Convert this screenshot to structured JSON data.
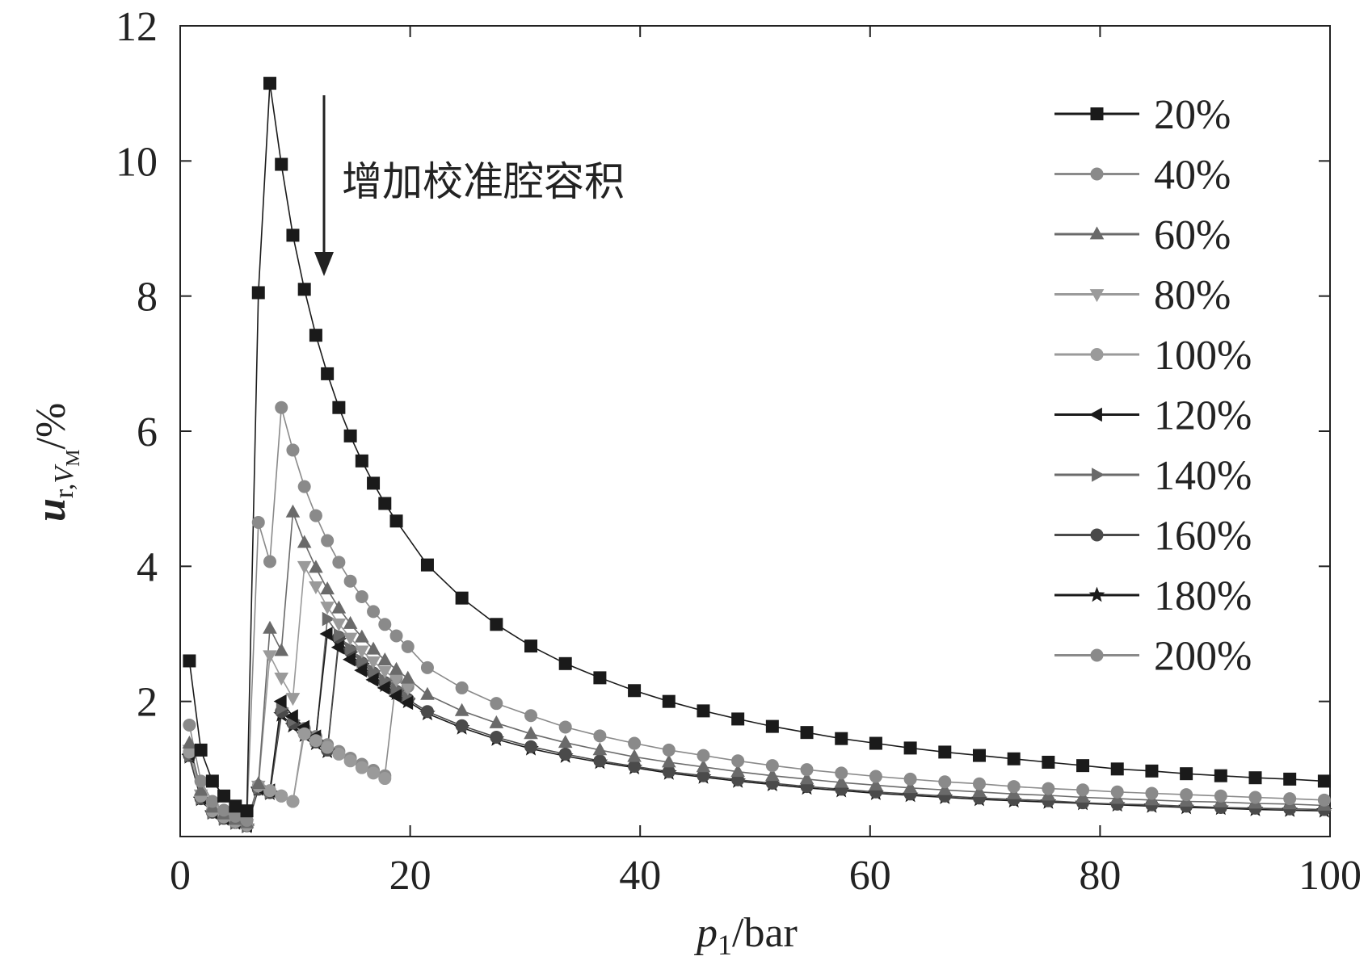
{
  "chart_data": {
    "type": "line",
    "title": "",
    "xlabel": "p1/bar",
    "xlabel_main": "p",
    "xlabel_sub": "1",
    "xlabel_unit": "/bar",
    "ylabel_main": "u",
    "ylabel_sub": "r,",
    "ylabel_sub2": "V",
    "ylabel_sub3": "M",
    "ylabel_unit": "/%",
    "xlim": [
      0,
      100
    ],
    "ylim": [
      0,
      12
    ],
    "xticks": [
      0,
      20,
      40,
      60,
      80,
      100
    ],
    "yticks": [
      2,
      4,
      6,
      8,
      10,
      12
    ],
    "annotation": "增加校准腔容积",
    "grid": false,
    "legend_position": "top-right",
    "series": [
      {
        "name": "20%",
        "marker": "square",
        "color": "#1a1a1a",
        "x": [
          0.8,
          1.8,
          2.8,
          3.8,
          4.8,
          5.8,
          6.8,
          7.8,
          8.8,
          9.8,
          10.8,
          11.8,
          12.8,
          13.8,
          14.8,
          15.8,
          16.8,
          17.8,
          18.8,
          21.5,
          24.5,
          27.5,
          30.5,
          33.5,
          36.5,
          39.5,
          42.5,
          45.5,
          48.5,
          51.5,
          54.5,
          57.5,
          60.5,
          63.5,
          66.5,
          69.5,
          72.5,
          75.5,
          78.5,
          81.5,
          84.5,
          87.5,
          90.5,
          93.5,
          96.5,
          99.5
        ],
        "y": [
          2.6,
          1.28,
          0.82,
          0.6,
          0.45,
          0.38,
          8.05,
          11.15,
          9.95,
          8.9,
          8.1,
          7.42,
          6.85,
          6.35,
          5.93,
          5.56,
          5.23,
          4.93,
          4.67,
          4.02,
          3.53,
          3.14,
          2.82,
          2.56,
          2.35,
          2.16,
          2.0,
          1.86,
          1.74,
          1.63,
          1.54,
          1.45,
          1.38,
          1.31,
          1.25,
          1.2,
          1.15,
          1.1,
          1.05,
          1.0,
          0.97,
          0.93,
          0.9,
          0.87,
          0.85,
          0.82
        ]
      },
      {
        "name": "40%",
        "marker": "circle",
        "color": "#8a8a8a",
        "x": [
          0.8,
          1.8,
          2.8,
          3.8,
          4.8,
          5.8,
          6.8,
          7.8,
          8.8,
          9.8,
          10.8,
          11.8,
          12.8,
          13.8,
          14.8,
          15.8,
          16.8,
          17.8,
          18.8,
          19.8,
          21.5,
          24.5,
          27.5,
          30.5,
          33.5,
          36.5,
          39.5,
          42.5,
          45.5,
          48.5,
          51.5,
          54.5,
          57.5,
          60.5,
          63.5,
          66.5,
          69.5,
          72.5,
          75.5,
          78.5,
          81.5,
          84.5,
          87.5,
          90.5,
          93.5,
          96.5,
          99.5
        ],
        "y": [
          1.65,
          0.82,
          0.52,
          0.39,
          0.3,
          0.24,
          4.65,
          4.07,
          6.35,
          5.72,
          5.18,
          4.75,
          4.38,
          4.06,
          3.78,
          3.55,
          3.33,
          3.14,
          2.97,
          2.81,
          2.5,
          2.2,
          1.97,
          1.79,
          1.62,
          1.49,
          1.38,
          1.28,
          1.2,
          1.12,
          1.05,
          0.99,
          0.94,
          0.89,
          0.85,
          0.81,
          0.78,
          0.74,
          0.71,
          0.69,
          0.66,
          0.64,
          0.62,
          0.6,
          0.58,
          0.56,
          0.54
        ]
      },
      {
        "name": "60%",
        "marker": "triangle-up",
        "color": "#6a6a6a",
        "x": [
          0.8,
          1.8,
          2.8,
          3.8,
          4.8,
          5.8,
          6.8,
          7.8,
          8.8,
          9.8,
          10.8,
          11.8,
          12.8,
          13.8,
          14.8,
          15.8,
          16.8,
          17.8,
          18.8,
          19.8,
          21.5,
          24.5,
          27.5,
          30.5,
          33.5,
          36.5,
          39.5,
          42.5,
          45.5,
          48.5,
          51.5,
          54.5,
          57.5,
          60.5,
          63.5,
          66.5,
          69.5,
          72.5,
          75.5,
          78.5,
          81.5,
          84.5,
          87.5,
          90.5,
          93.5,
          96.5,
          99.5
        ],
        "y": [
          1.38,
          0.68,
          0.43,
          0.33,
          0.25,
          0.2,
          0.78,
          3.08,
          2.75,
          4.8,
          4.35,
          3.98,
          3.66,
          3.38,
          3.15,
          2.95,
          2.77,
          2.61,
          2.47,
          2.34,
          2.1,
          1.86,
          1.68,
          1.52,
          1.39,
          1.28,
          1.18,
          1.1,
          1.03,
          0.96,
          0.9,
          0.85,
          0.8,
          0.76,
          0.72,
          0.69,
          0.66,
          0.63,
          0.61,
          0.58,
          0.56,
          0.54,
          0.52,
          0.51,
          0.49,
          0.48,
          0.46
        ]
      },
      {
        "name": "80%",
        "marker": "triangle-down",
        "color": "#9a9a9a",
        "x": [
          0.8,
          1.8,
          2.8,
          3.8,
          4.8,
          5.8,
          6.8,
          7.8,
          8.8,
          9.8,
          10.8,
          11.8,
          12.8,
          13.8,
          14.8,
          15.8,
          16.8,
          17.8,
          18.8,
          19.8
        ],
        "y": [
          1.28,
          0.62,
          0.4,
          0.3,
          0.23,
          0.18,
          0.75,
          2.68,
          2.35,
          2.05,
          4.0,
          3.7,
          3.4,
          3.15,
          2.94,
          2.75,
          2.59,
          2.45,
          2.32,
          2.2
        ]
      },
      {
        "name": "100%",
        "marker": "circle",
        "color": "#9a9a9a",
        "x": [
          0.8,
          1.8,
          2.8,
          3.8,
          4.8,
          5.8,
          6.8,
          7.8,
          8.8,
          9.8,
          10.8,
          11.8,
          12.8,
          13.8,
          14.8,
          15.8,
          16.8,
          17.8
        ],
        "y": [
          1.25,
          0.6,
          0.38,
          0.29,
          0.22,
          0.17,
          0.75,
          0.68,
          0.6,
          0.52,
          1.52,
          1.42,
          1.32,
          1.22,
          1.12,
          1.02,
          0.94,
          0.86
        ]
      },
      {
        "name": "120%",
        "marker": "triangle-left",
        "color": "#1a1a1a",
        "x": [
          0.8,
          1.8,
          2.8,
          3.8,
          4.8,
          5.8,
          6.8,
          7.8,
          8.8,
          9.8,
          10.8,
          11.8,
          12.8,
          13.8,
          14.8,
          15.8,
          16.8,
          17.8,
          18.8,
          19.8
        ],
        "y": [
          1.22,
          0.58,
          0.37,
          0.28,
          0.22,
          0.17,
          0.72,
          0.68,
          2.0,
          1.78,
          1.62,
          1.48,
          3.0,
          2.8,
          2.62,
          2.46,
          2.32,
          2.2,
          2.08,
          1.98
        ]
      },
      {
        "name": "140%",
        "marker": "triangle-right",
        "color": "#6a6a6a",
        "x": [
          0.8,
          1.8,
          2.8,
          3.8,
          4.8,
          5.8,
          6.8,
          7.8,
          8.8,
          9.8,
          10.8,
          11.8,
          12.8,
          13.8,
          14.8,
          15.8,
          16.8,
          17.8,
          18.8,
          19.8
        ],
        "y": [
          1.2,
          0.57,
          0.36,
          0.27,
          0.21,
          0.16,
          0.72,
          0.66,
          1.9,
          1.72,
          1.56,
          1.43,
          3.22,
          2.98,
          2.78,
          2.6,
          2.45,
          2.31,
          2.18,
          2.05
        ]
      },
      {
        "name": "160%",
        "marker": "circle",
        "color": "#4a4a4a",
        "x": [
          0.8,
          1.8,
          2.8,
          3.8,
          4.8,
          5.8,
          6.8,
          7.8,
          8.8,
          9.8,
          10.8,
          11.8,
          12.8,
          13.8,
          14.8,
          15.8,
          16.8,
          17.8,
          18.8,
          19.8,
          21.5,
          24.5,
          27.5,
          30.5,
          33.5,
          36.5,
          39.5,
          42.5,
          45.5,
          48.5,
          51.5,
          54.5,
          57.5,
          60.5,
          63.5,
          66.5,
          69.5,
          72.5,
          75.5,
          78.5,
          81.5,
          84.5,
          87.5,
          90.5,
          93.5,
          96.5,
          99.5
        ],
        "y": [
          1.2,
          0.56,
          0.36,
          0.27,
          0.21,
          0.16,
          0.7,
          0.65,
          1.85,
          1.68,
          1.52,
          1.4,
          1.28,
          2.95,
          2.75,
          2.57,
          2.42,
          2.28,
          2.15,
          2.03,
          1.85,
          1.64,
          1.47,
          1.33,
          1.22,
          1.12,
          1.04,
          0.96,
          0.9,
          0.84,
          0.79,
          0.74,
          0.7,
          0.66,
          0.63,
          0.6,
          0.57,
          0.55,
          0.53,
          0.5,
          0.48,
          0.47,
          0.45,
          0.43,
          0.42,
          0.41,
          0.4
        ]
      },
      {
        "name": "180%",
        "marker": "star",
        "color": "#1a1a1a",
        "x": [
          0.8,
          1.8,
          2.8,
          3.8,
          4.8,
          5.8,
          6.8,
          7.8,
          8.8,
          9.8,
          10.8,
          11.8,
          12.8,
          13.8,
          14.8,
          15.8,
          16.8,
          17.8,
          18.8,
          19.8,
          21.5,
          24.5,
          27.5,
          30.5,
          33.5,
          36.5,
          39.5,
          42.5,
          45.5,
          48.5,
          51.5,
          54.5,
          57.5,
          60.5,
          63.5,
          66.5,
          69.5,
          72.5,
          75.5,
          78.5,
          81.5,
          84.5,
          87.5,
          90.5,
          93.5,
          96.5,
          99.5
        ],
        "y": [
          1.18,
          0.55,
          0.35,
          0.26,
          0.2,
          0.15,
          0.7,
          0.64,
          1.8,
          1.64,
          1.5,
          1.38,
          1.26,
          2.9,
          2.7,
          2.53,
          2.38,
          2.24,
          2.12,
          2.0,
          1.82,
          1.61,
          1.44,
          1.3,
          1.19,
          1.1,
          1.02,
          0.94,
          0.88,
          0.82,
          0.77,
          0.72,
          0.68,
          0.64,
          0.61,
          0.58,
          0.55,
          0.53,
          0.51,
          0.49,
          0.47,
          0.45,
          0.43,
          0.42,
          0.4,
          0.39,
          0.38
        ]
      },
      {
        "name": "200%",
        "marker": "circle",
        "color": "#8a8a8a",
        "x": [
          0.8,
          1.8,
          2.8,
          3.8,
          4.8,
          5.8,
          6.8,
          7.8,
          8.8,
          9.8,
          10.8,
          11.8,
          12.8,
          13.8,
          14.8,
          15.8,
          16.8,
          17.8,
          18.8,
          19.8
        ],
        "y": [
          1.25,
          0.58,
          0.37,
          0.28,
          0.21,
          0.16,
          0.72,
          0.66,
          0.6,
          0.52,
          1.6,
          1.48,
          1.36,
          1.26,
          1.16,
          1.07,
          0.98,
          0.9,
          2.35,
          2.22
        ]
      }
    ]
  }
}
